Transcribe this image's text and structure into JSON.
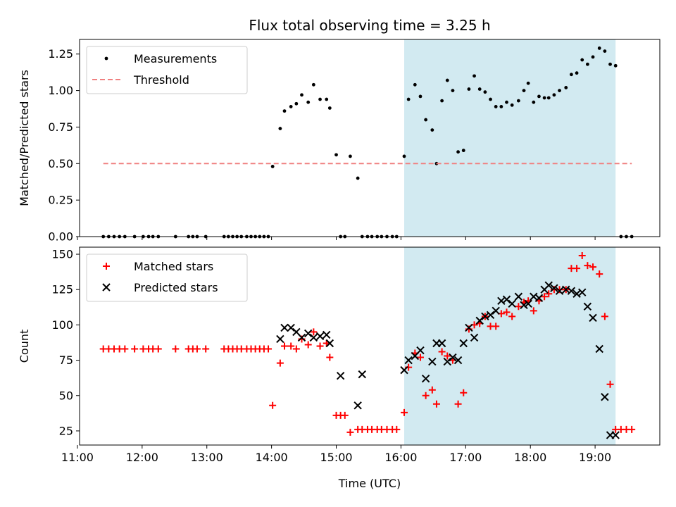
{
  "figure": {
    "title": "Flux total observing time = 3.25 h"
  },
  "chart_data": [
    {
      "type": "scatter",
      "ylabel": "Matched/Predicted stars",
      "xlim": [
        "11:02",
        "20:00"
      ],
      "ylim": [
        0,
        1.35
      ],
      "x_tick_labels": [
        "11:00",
        "12:00",
        "13:00",
        "14:00",
        "15:00",
        "16:00",
        "17:00",
        "18:00",
        "19:00"
      ],
      "y_ticks": [
        0.0,
        0.25,
        0.5,
        0.75,
        1.0,
        1.25
      ],
      "y_tick_labels": [
        "0.00",
        "0.25",
        "0.50",
        "0.75",
        "1.00",
        "1.25"
      ],
      "grid": false,
      "legend_position": "upper left",
      "shaded_interval": {
        "start": "16:03",
        "end": "19:19",
        "color": "#add8e6"
      },
      "series": [
        {
          "name": "Measurements",
          "color": "#000000",
          "marker": "dot",
          "x": [
            "11:24",
            "11:29",
            "11:34",
            "11:39",
            "11:44",
            "11:53",
            "12:01",
            "12:06",
            "12:10",
            "12:15",
            "12:31",
            "12:43",
            "12:47",
            "12:51",
            "12:59",
            "13:16",
            "13:20",
            "13:24",
            "13:28",
            "13:32",
            "13:37",
            "13:41",
            "13:45",
            "13:49",
            "13:53",
            "13:57",
            "14:01",
            "14:08",
            "14:12",
            "14:18",
            "14:23",
            "14:28",
            "14:34",
            "14:39",
            "14:45",
            "14:51",
            "14:54",
            "15:00",
            "15:04",
            "15:08",
            "15:13",
            "15:20",
            "15:24",
            "15:29",
            "15:33",
            "15:38",
            "15:42",
            "15:47",
            "15:52",
            "15:56",
            "16:03",
            "16:07",
            "16:13",
            "16:18",
            "16:23",
            "16:29",
            "16:33",
            "16:38",
            "16:43",
            "16:48",
            "16:53",
            "16:58",
            "17:03",
            "17:08",
            "17:13",
            "17:18",
            "17:23",
            "17:28",
            "17:33",
            "17:38",
            "17:43",
            "17:49",
            "17:54",
            "17:58",
            "18:03",
            "18:08",
            "18:13",
            "18:17",
            "18:22",
            "18:27",
            "18:33",
            "18:38",
            "18:43",
            "18:48",
            "18:53",
            "18:58",
            "19:04",
            "19:09",
            "19:14",
            "19:19",
            "19:24",
            "19:29",
            "19:34"
          ],
          "y": [
            0,
            0,
            0,
            0,
            0,
            0,
            0,
            0,
            0,
            0,
            0,
            0,
            0,
            0,
            0,
            0,
            0,
            0,
            0,
            0,
            0,
            0,
            0,
            0,
            0,
            0,
            0.48,
            0.74,
            0.86,
            0.89,
            0.91,
            0.97,
            0.92,
            1.04,
            0.94,
            0.94,
            0.88,
            0.56,
            0,
            0,
            0.55,
            0.4,
            0,
            0,
            0,
            0,
            0,
            0,
            0,
            0,
            0.55,
            0.94,
            1.04,
            0.96,
            0.8,
            0.73,
            0.5,
            0.93,
            1.07,
            1.0,
            0.58,
            0.59,
            1.01,
            1.1,
            1.01,
            0.99,
            0.94,
            0.89,
            0.89,
            0.92,
            0.9,
            0.93,
            1.0,
            1.05,
            0.92,
            0.96,
            0.95,
            0.95,
            0.97,
            1.0,
            1.02,
            1.11,
            1.12,
            1.21,
            1.18,
            1.23,
            1.29,
            1.27,
            1.18,
            1.17,
            0,
            0,
            0
          ]
        },
        {
          "name": "Threshold",
          "color": "#f08080",
          "style": "dashed",
          "x": [
            "11:24",
            "19:34"
          ],
          "y": [
            0.5,
            0.5
          ]
        }
      ]
    },
    {
      "type": "scatter",
      "xlabel": "Time (UTC)",
      "ylabel": "Count",
      "xlim": [
        "11:02",
        "20:00"
      ],
      "ylim": [
        15,
        155
      ],
      "x_tick_labels": [
        "11:00",
        "12:00",
        "13:00",
        "14:00",
        "15:00",
        "16:00",
        "17:00",
        "18:00",
        "19:00"
      ],
      "y_ticks": [
        25,
        50,
        75,
        100,
        125,
        150
      ],
      "y_tick_labels": [
        "25",
        "50",
        "75",
        "100",
        "125",
        "150"
      ],
      "grid": false,
      "legend_position": "upper left",
      "shaded_interval": {
        "start": "16:03",
        "end": "19:19",
        "color": "#add8e6"
      },
      "series": [
        {
          "name": "Matched stars",
          "color": "#ff0000",
          "marker": "plus",
          "x": [
            "11:24",
            "11:29",
            "11:34",
            "11:39",
            "11:44",
            "11:53",
            "12:01",
            "12:06",
            "12:10",
            "12:15",
            "12:31",
            "12:43",
            "12:47",
            "12:51",
            "12:59",
            "13:16",
            "13:20",
            "13:24",
            "13:28",
            "13:32",
            "13:37",
            "13:41",
            "13:45",
            "13:49",
            "13:53",
            "13:57",
            "14:01",
            "14:08",
            "14:12",
            "14:18",
            "14:23",
            "14:28",
            "14:34",
            "14:39",
            "14:45",
            "14:51",
            "14:54",
            "15:00",
            "15:04",
            "15:08",
            "15:13",
            "15:20",
            "15:24",
            "15:29",
            "15:33",
            "15:38",
            "15:42",
            "15:47",
            "15:52",
            "15:56",
            "16:03",
            "16:07",
            "16:13",
            "16:18",
            "16:23",
            "16:29",
            "16:33",
            "16:38",
            "16:43",
            "16:48",
            "16:53",
            "16:58",
            "17:03",
            "17:08",
            "17:13",
            "17:18",
            "17:23",
            "17:28",
            "17:33",
            "17:38",
            "17:43",
            "17:49",
            "17:54",
            "17:58",
            "18:03",
            "18:08",
            "18:13",
            "18:17",
            "18:22",
            "18:27",
            "18:33",
            "18:38",
            "18:43",
            "18:48",
            "18:53",
            "18:58",
            "19:04",
            "19:09",
            "19:14",
            "19:19",
            "19:24",
            "19:29",
            "19:34"
          ],
          "y": [
            83,
            83,
            83,
            83,
            83,
            83,
            83,
            83,
            83,
            83,
            83,
            83,
            83,
            83,
            83,
            83,
            83,
            83,
            83,
            83,
            83,
            83,
            83,
            83,
            83,
            83,
            43,
            73,
            85,
            85,
            83,
            90,
            86,
            95,
            85,
            87,
            77,
            36,
            36,
            36,
            24,
            26,
            26,
            26,
            26,
            26,
            26,
            26,
            26,
            26,
            38,
            70,
            80,
            77,
            50,
            54,
            44,
            81,
            78,
            75,
            44,
            52,
            97,
            100,
            101,
            106,
            99,
            99,
            108,
            109,
            106,
            113,
            116,
            117,
            110,
            117,
            120,
            122,
            125,
            125,
            125,
            140,
            140,
            149,
            142,
            141,
            136,
            106,
            58,
            26,
            26,
            26,
            26
          ]
        },
        {
          "name": "Predicted stars",
          "color": "#000000",
          "marker": "x",
          "x": [
            "14:08",
            "14:12",
            "14:18",
            "14:23",
            "14:28",
            "14:34",
            "14:39",
            "14:45",
            "14:51",
            "14:54",
            "15:04",
            "15:20",
            "15:24",
            "16:03",
            "16:07",
            "16:13",
            "16:18",
            "16:23",
            "16:29",
            "16:33",
            "16:38",
            "16:43",
            "16:48",
            "16:53",
            "16:58",
            "17:03",
            "17:08",
            "17:13",
            "17:18",
            "17:23",
            "17:28",
            "17:33",
            "17:38",
            "17:43",
            "17:49",
            "17:54",
            "17:58",
            "18:03",
            "18:08",
            "18:13",
            "18:17",
            "18:22",
            "18:27",
            "18:33",
            "18:38",
            "18:43",
            "18:48",
            "18:53",
            "18:58",
            "19:04",
            "19:09",
            "19:14",
            "19:19"
          ],
          "y": [
            90,
            98,
            98,
            95,
            91,
            94,
            91,
            92,
            93,
            87,
            64,
            43,
            65,
            68,
            75,
            78,
            82,
            62,
            74,
            87,
            87,
            74,
            77,
            75,
            87,
            98,
            91,
            103,
            106,
            107,
            110,
            117,
            118,
            115,
            120,
            114,
            115,
            120,
            119,
            125,
            128,
            126,
            124,
            125,
            124,
            122,
            123,
            113,
            105,
            83,
            49,
            22,
            22
          ]
        }
      ]
    }
  ]
}
